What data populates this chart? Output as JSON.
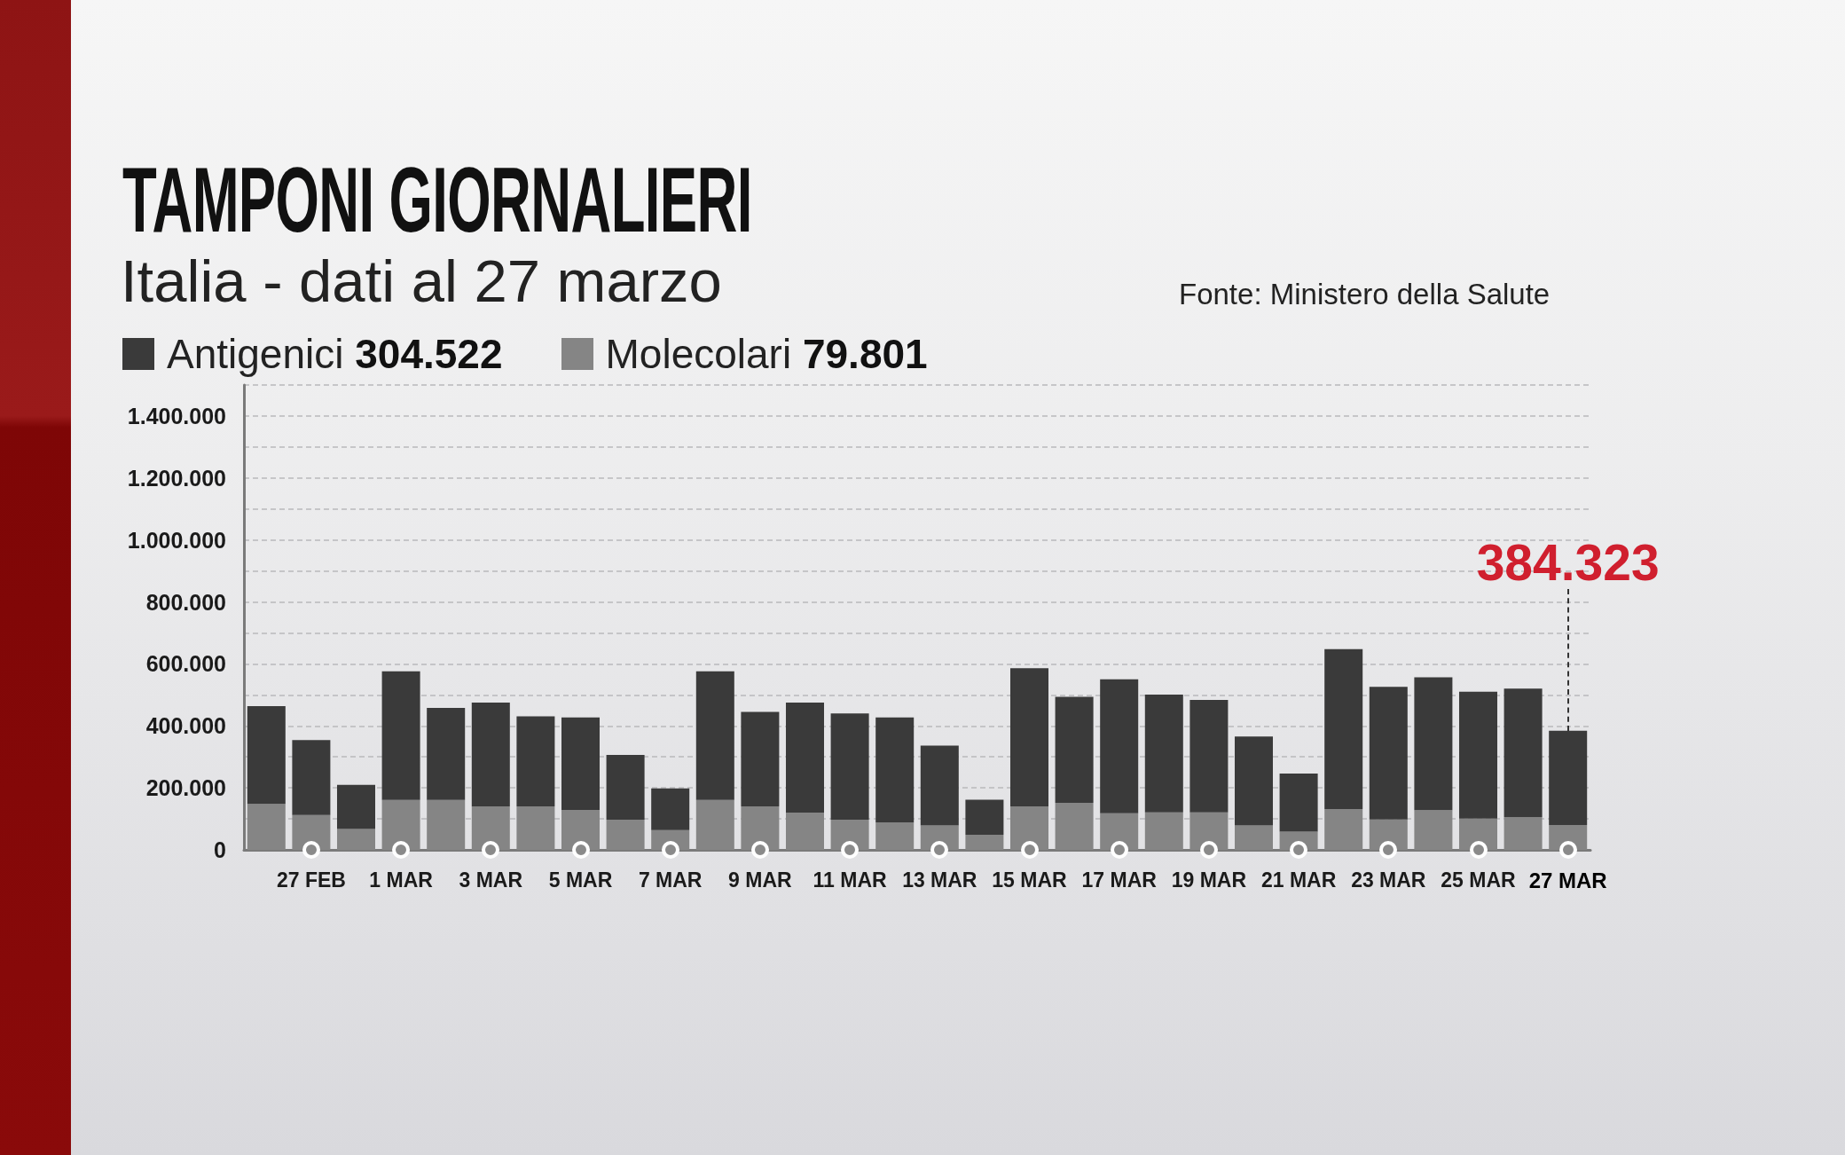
{
  "chart_data": {
    "type": "bar",
    "title": "TAMPONI GIORNALIERI",
    "subtitle": "Italia - dati al 27 marzo",
    "annotations": [
      "Fonte: Ministero della Salute",
      {
        "text": "384.323",
        "x": "27 MAR",
        "y": 384323
      }
    ],
    "categories": [
      null,
      "27 FEB",
      null,
      "1 MAR",
      null,
      "3 MAR",
      null,
      "5 MAR",
      null,
      "7 MAR",
      null,
      "9 MAR",
      null,
      "11 MAR",
      null,
      "13 MAR",
      null,
      "15 MAR",
      null,
      "17 MAR",
      null,
      "19 MAR",
      null,
      "21 MAR",
      null,
      "23 MAR",
      null,
      "25 MAR",
      null,
      "27 MAR"
    ],
    "stacked": true,
    "series": [
      {
        "name": "Molecolari 79.801",
        "color": "#858585",
        "values": [
          148000,
          112000,
          67000,
          161000,
          161000,
          140000,
          140000,
          129000,
          97000,
          64000,
          161000,
          140000,
          120000,
          97000,
          88000,
          79000,
          49000,
          140000,
          152000,
          118000,
          121000,
          121000,
          79000,
          59000,
          132000,
          98000,
          128000,
          101000,
          105000,
          79801
        ]
      },
      {
        "name": "Antigenici 304.522",
        "color": "#3a3a3a",
        "values": [
          316000,
          242000,
          143000,
          415000,
          297000,
          335000,
          291000,
          298000,
          209000,
          134000,
          415000,
          305000,
          355000,
          343000,
          339000,
          257000,
          113000,
          446000,
          342000,
          432000,
          380000,
          363000,
          287000,
          187000,
          516000,
          428000,
          429000,
          409000,
          415000,
          304522
        ]
      }
    ],
    "ylim": [
      0,
      1500000
    ],
    "yticks": [
      0,
      {
        "value": 100000,
        "label": null
      },
      {
        "value": 200000,
        "label": "200.000"
      },
      {
        "value": 300000,
        "label": null
      },
      {
        "value": 400000,
        "label": "400.000"
      },
      {
        "value": 500000,
        "label": null
      },
      {
        "value": 600000,
        "label": "600.000"
      },
      {
        "value": 700000,
        "label": null
      },
      {
        "value": 800000,
        "label": "800.000"
      },
      {
        "value": 900000,
        "label": null
      },
      {
        "value": 1000000,
        "label": "1.000.000"
      },
      {
        "value": 1100000,
        "label": null
      },
      {
        "value": 1200000,
        "label": "1.200.000"
      },
      {
        "value": 1300000,
        "label": null
      },
      {
        "value": 1400000,
        "label": "1.400.000"
      },
      {
        "value": 1500000,
        "label": null
      }
    ],
    "grid": "y",
    "legend": "top left"
  }
}
